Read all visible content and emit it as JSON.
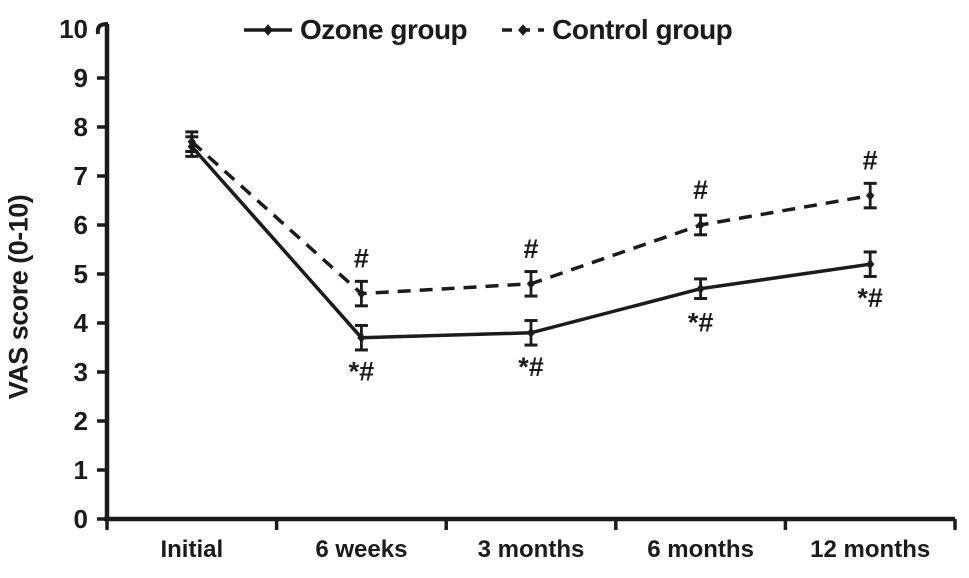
{
  "chart_data": {
    "type": "line",
    "title": "",
    "xlabel": "",
    "ylabel": "VAS score (0-10)",
    "categories": [
      "Initial",
      "6 weeks",
      "3 months",
      "6 months",
      "12 months"
    ],
    "series": [
      {
        "name": "Ozone group",
        "style": "solid",
        "values": [
          7.6,
          3.7,
          3.8,
          4.7,
          5.2
        ],
        "errors": [
          0.2,
          0.25,
          0.25,
          0.2,
          0.25
        ],
        "annotations": [
          "",
          "*#",
          "*#",
          "*#",
          "*#"
        ],
        "annotation_position": "below"
      },
      {
        "name": "Control group",
        "style": "dashed",
        "values": [
          7.7,
          4.6,
          4.8,
          6.0,
          6.6
        ],
        "errors": [
          0.2,
          0.25,
          0.25,
          0.2,
          0.25
        ],
        "annotations": [
          "",
          "#",
          "#",
          "#",
          "#"
        ],
        "annotation_position": "above"
      }
    ],
    "ylim": [
      0,
      10
    ],
    "yticks": [
      0,
      1,
      2,
      3,
      4,
      5,
      6,
      7,
      8,
      9,
      10
    ],
    "grid": false,
    "error_bars": true,
    "legend_position": "top",
    "color": "#1b1b1b",
    "background": "#ffffff"
  }
}
